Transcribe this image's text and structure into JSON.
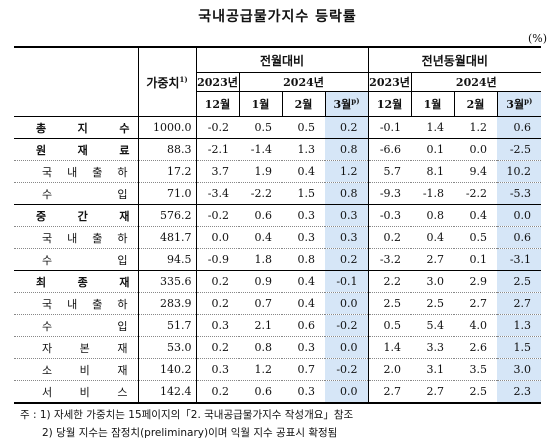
{
  "title": "국내공급물가지수 등락률",
  "unit": "(%)",
  "headers": {
    "weight": "가중치",
    "weight_sup": "1)",
    "mom": "전월대비",
    "yoy": "전년동월대비",
    "y2023": "2023년",
    "y2024": "2024년",
    "m12": "12월",
    "m1": "1월",
    "m2": "2월",
    "m3": "3월",
    "m3_sup": "p)"
  },
  "rows": [
    {
      "label": "총 지 수",
      "weight": "1000.0",
      "v": [
        "-0.2",
        "0.5",
        "0.5",
        "0.2",
        "-0.1",
        "1.4",
        "1.2",
        "0.6"
      ]
    },
    {
      "label": "원 재 료",
      "weight": "88.3",
      "v": [
        "-2.1",
        "-1.4",
        "1.3",
        "0.8",
        "-6.6",
        "0.1",
        "0.0",
        "-2.5"
      ]
    },
    {
      "label": "국 내 출 하",
      "weight": "17.2",
      "v": [
        "3.7",
        "1.9",
        "0.4",
        "1.2",
        "5.7",
        "8.1",
        "9.4",
        "10.2"
      ]
    },
    {
      "label": "수 입",
      "weight": "71.0",
      "v": [
        "-3.4",
        "-2.2",
        "1.5",
        "0.8",
        "-9.3",
        "-1.8",
        "-2.2",
        "-5.3"
      ]
    },
    {
      "label": "중 간 재",
      "weight": "576.2",
      "v": [
        "-0.2",
        "0.6",
        "0.3",
        "0.3",
        "-0.3",
        "0.8",
        "0.4",
        "0.0"
      ]
    },
    {
      "label": "국 내 출 하",
      "weight": "481.7",
      "v": [
        "0.0",
        "0.4",
        "0.3",
        "0.3",
        "0.2",
        "0.4",
        "0.5",
        "0.6"
      ]
    },
    {
      "label": "수 입",
      "weight": "94.5",
      "v": [
        "-0.9",
        "1.8",
        "0.8",
        "0.2",
        "-3.2",
        "2.7",
        "0.1",
        "-3.1"
      ]
    },
    {
      "label": "최 종 재",
      "weight": "335.6",
      "v": [
        "0.2",
        "0.9",
        "0.4",
        "-0.1",
        "2.2",
        "3.0",
        "2.9",
        "2.5"
      ]
    },
    {
      "label": "국 내 출 하",
      "weight": "283.9",
      "v": [
        "0.2",
        "0.7",
        "0.4",
        "0.0",
        "2.5",
        "2.5",
        "2.7",
        "2.7"
      ]
    },
    {
      "label": "수 입",
      "weight": "51.7",
      "v": [
        "0.3",
        "2.1",
        "0.6",
        "-0.2",
        "0.5",
        "5.4",
        "4.0",
        "1.3"
      ]
    },
    {
      "label": "자 본 재",
      "weight": "53.0",
      "v": [
        "0.2",
        "0.8",
        "0.3",
        "0.0",
        "1.4",
        "3.3",
        "2.6",
        "1.5"
      ]
    },
    {
      "label": "소 비 재",
      "weight": "140.2",
      "v": [
        "0.3",
        "1.2",
        "0.7",
        "-0.2",
        "2.0",
        "3.1",
        "3.5",
        "3.0"
      ]
    },
    {
      "label": "서 비 스",
      "weight": "142.4",
      "v": [
        "0.2",
        "0.6",
        "0.3",
        "0.0",
        "2.7",
        "2.7",
        "2.5",
        "2.3"
      ]
    }
  ],
  "notes": [
    "주 : 1) 자세한 가중치는 15페이지의「2. 국내공급물가지수 작성개요」참조",
    "2) 당월 지수는 잠정치(preliminary)이며 익월 지수 공표시 확정됨"
  ]
}
